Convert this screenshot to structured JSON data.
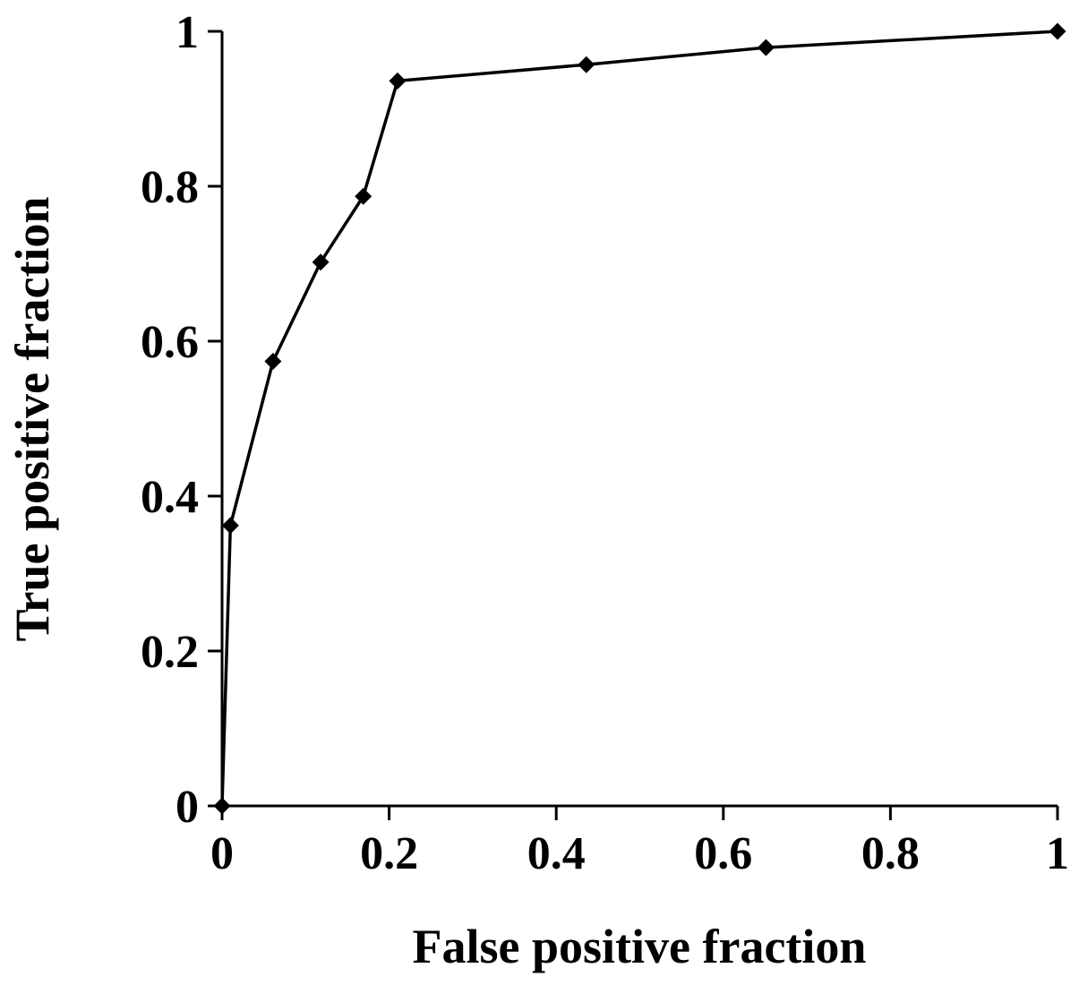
{
  "chart_data": {
    "type": "line",
    "title": "",
    "xlabel": "False positive fraction",
    "ylabel": "True positive fraction",
    "xlim": [
      0,
      1
    ],
    "ylim": [
      0,
      1
    ],
    "x_ticks": [
      0,
      0.2,
      0.4,
      0.6,
      0.8,
      1
    ],
    "x_tick_labels": [
      "0",
      "0.2",
      "0.4",
      "0.6",
      "0.8",
      "1"
    ],
    "y_ticks": [
      0,
      0.2,
      0.4,
      0.6,
      0.8,
      1
    ],
    "y_tick_labels": [
      "0",
      "0.2",
      "0.4",
      "0.6",
      "0.8",
      "1"
    ],
    "grid": false,
    "legend": "none",
    "marker": "diamond",
    "series": [
      {
        "color": "#000000",
        "points": [
          {
            "x": 0.0,
            "y": 0.0
          },
          {
            "x": 0.01,
            "y": 0.362
          },
          {
            "x": 0.061,
            "y": 0.574
          },
          {
            "x": 0.118,
            "y": 0.702
          },
          {
            "x": 0.169,
            "y": 0.787
          },
          {
            "x": 0.21,
            "y": 0.936
          },
          {
            "x": 0.436,
            "y": 0.957
          },
          {
            "x": 0.651,
            "y": 0.979
          },
          {
            "x": 1.0,
            "y": 1.0
          }
        ]
      }
    ]
  }
}
